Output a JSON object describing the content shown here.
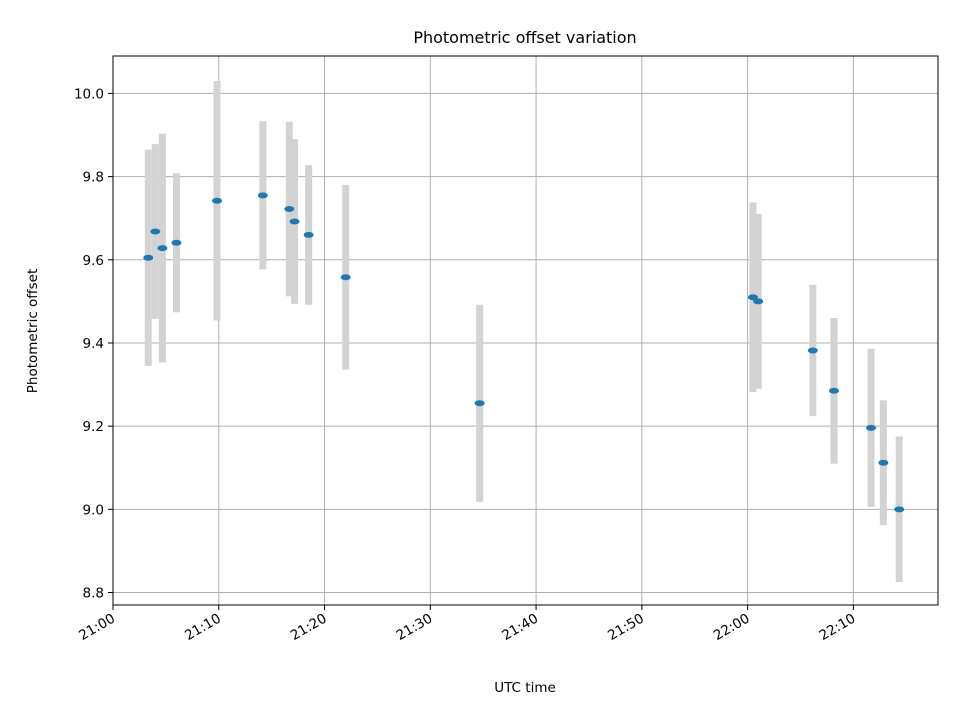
{
  "chart_data": {
    "type": "scatter",
    "title": "Photometric offset variation",
    "xlabel": "UTC time",
    "ylabel": "Photometric offset",
    "xlim": [
      "21:00",
      "22:18"
    ],
    "ylim": [
      8.77,
      10.09
    ],
    "x_ticks": [
      "21:00",
      "21:10",
      "21:20",
      "21:30",
      "21:40",
      "21:50",
      "22:00",
      "22:10"
    ],
    "y_ticks": [
      "8.8",
      "9.0",
      "9.2",
      "9.4",
      "9.6",
      "9.8",
      "10.0"
    ],
    "grid": true,
    "point_color": "#1f77b4",
    "errorbar_color": "#d3d3d3",
    "points": [
      {
        "x": "21:03:20",
        "y": 9.605,
        "err": 0.26
      },
      {
        "x": "21:04:00",
        "y": 9.668,
        "err": 0.21
      },
      {
        "x": "21:04:40",
        "y": 9.628,
        "err": 0.275
      },
      {
        "x": "21:06:00",
        "y": 9.641,
        "err": 0.167
      },
      {
        "x": "21:09:50",
        "y": 9.742,
        "err": 0.288
      },
      {
        "x": "21:14:10",
        "y": 9.755,
        "err": 0.178
      },
      {
        "x": "21:16:40",
        "y": 9.722,
        "err": 0.21
      },
      {
        "x": "21:17:10",
        "y": 9.692,
        "err": 0.198
      },
      {
        "x": "21:18:30",
        "y": 9.66,
        "err": 0.168
      },
      {
        "x": "21:22:00",
        "y": 9.558,
        "err": 0.222
      },
      {
        "x": "21:34:40",
        "y": 9.255,
        "err": 0.237
      },
      {
        "x": "22:00:30",
        "y": 9.51,
        "err": 0.228
      },
      {
        "x": "22:01:00",
        "y": 9.5,
        "err": 0.21
      },
      {
        "x": "22:06:10",
        "y": 9.382,
        "err": 0.158
      },
      {
        "x": "22:08:10",
        "y": 9.285,
        "err": 0.175
      },
      {
        "x": "22:11:40",
        "y": 9.196,
        "err": 0.19
      },
      {
        "x": "22:12:50",
        "y": 9.112,
        "err": 0.15
      },
      {
        "x": "22:14:20",
        "y": 9.0,
        "err": 0.175
      }
    ]
  }
}
